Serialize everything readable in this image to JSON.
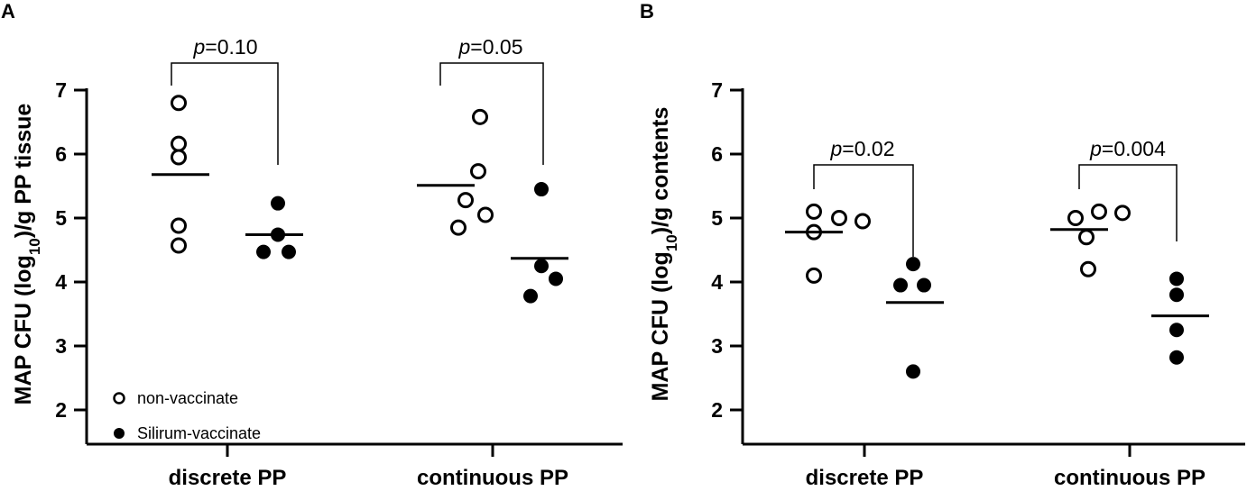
{
  "chart_data": [
    {
      "panel": "A",
      "type": "scatter",
      "ylabel_main": "MAP CFU (log",
      "ylabel_sub": "10",
      "ylabel_rest": ")/g PP tissue",
      "ylim": [
        2,
        7
      ],
      "yticks": [
        "2",
        "3",
        "4",
        "5",
        "6",
        "7"
      ],
      "categories": [
        "discrete PP",
        "continuous PP"
      ],
      "series": [
        {
          "name": "non-vaccinate",
          "marker": "open-circle",
          "points": [
            [
              0,
              6.8
            ],
            [
              0,
              6.16
            ],
            [
              0,
              5.95
            ],
            [
              0,
              4.88
            ],
            [
              0,
              4.57
            ],
            [
              1,
              6.58
            ],
            [
              1,
              5.73
            ],
            [
              1,
              5.28
            ],
            [
              1,
              5.05
            ],
            [
              1,
              4.85
            ]
          ],
          "means": [
            5.68,
            5.51
          ]
        },
        {
          "name": "Silirum-vaccinate",
          "marker": "filled-circle",
          "points": [
            [
              0,
              5.23
            ],
            [
              0,
              4.74
            ],
            [
              0,
              4.47
            ],
            [
              0,
              4.47
            ],
            [
              1,
              5.45
            ],
            [
              1,
              4.25
            ],
            [
              1,
              4.05
            ],
            [
              1,
              3.78
            ]
          ],
          "means": [
            4.74,
            4.37
          ]
        }
      ],
      "comparisons": [
        {
          "category": "discrete PP",
          "p_prefix": "p",
          "p_value": "=0.10"
        },
        {
          "category": "continuous PP",
          "p_prefix": "p",
          "p_value": "=0.05"
        }
      ],
      "legend_position": "bottom-left"
    },
    {
      "panel": "B",
      "type": "scatter",
      "ylabel_main": "MAP CFU (log",
      "ylabel_sub": "10",
      "ylabel_rest": ")/g contents",
      "ylim": [
        2,
        7
      ],
      "yticks": [
        "2",
        "3",
        "4",
        "5",
        "6",
        "7"
      ],
      "categories": [
        "discrete PP",
        "continuous PP"
      ],
      "series": [
        {
          "name": "non-vaccinate",
          "marker": "open-circle",
          "points": [
            [
              0,
              5.1
            ],
            [
              0,
              5.0
            ],
            [
              0,
              4.95
            ],
            [
              0,
              4.78
            ],
            [
              0,
              4.1
            ],
            [
              1,
              5.1
            ],
            [
              1,
              5.08
            ],
            [
              1,
              5.0
            ],
            [
              1,
              4.7
            ],
            [
              1,
              4.2
            ]
          ],
          "means": [
            4.78,
            4.82
          ]
        },
        {
          "name": "Silirum-vaccinate",
          "marker": "filled-circle",
          "points": [
            [
              0,
              4.28
            ],
            [
              0,
              3.95
            ],
            [
              0,
              3.95
            ],
            [
              0,
              2.6
            ],
            [
              1,
              4.05
            ],
            [
              1,
              3.8
            ],
            [
              1,
              3.25
            ],
            [
              1,
              2.82
            ]
          ],
          "means": [
            3.68,
            3.47
          ]
        }
      ],
      "comparisons": [
        {
          "category": "discrete PP",
          "p_prefix": "p",
          "p_value": "=0.02"
        },
        {
          "category": "continuous PP",
          "p_prefix": "p",
          "p_value": "=0.004"
        }
      ]
    }
  ]
}
